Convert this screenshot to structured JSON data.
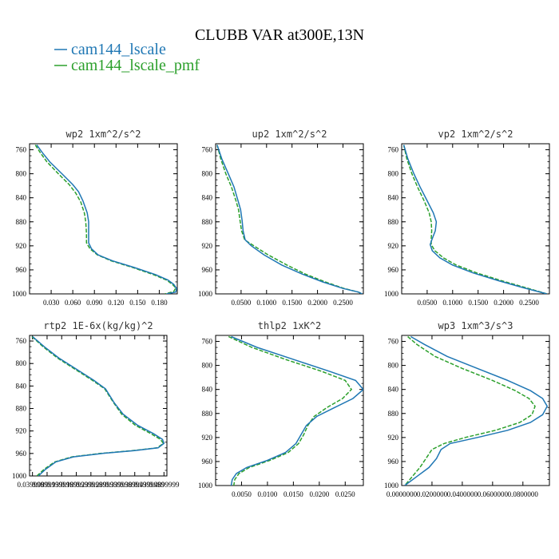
{
  "figure": {
    "title": "CLUBB VAR at300E,13N"
  },
  "legend": [
    {
      "name": "cam144_lscale",
      "color": "#1f77b4",
      "dash": false
    },
    {
      "name": "cam144_lscale_pmf",
      "color": "#2ca02c",
      "dash": true
    }
  ],
  "chart_data": [
    {
      "type": "line",
      "title": "wp2  1xm^2/s^2",
      "ylim": [
        1000,
        750
      ],
      "yticks": [
        760,
        800,
        840,
        880,
        920,
        960,
        1000
      ],
      "xlim": [
        0,
        0.205
      ],
      "xticks": [
        0.03,
        0.06,
        0.09,
        0.12,
        0.15,
        0.18
      ],
      "xticklabels": [
        "0.030",
        "0.060",
        "0.090",
        "0.120",
        "0.150",
        "0.180"
      ],
      "series": [
        {
          "name": "cam144_lscale",
          "points": [
            [
              0.01,
              752
            ],
            [
              0.018,
              765
            ],
            [
              0.028,
              780
            ],
            [
              0.045,
              800
            ],
            [
              0.06,
              818
            ],
            [
              0.068,
              830
            ],
            [
              0.074,
              845
            ],
            [
              0.08,
              865
            ],
            [
              0.082,
              880
            ],
            [
              0.082,
              900
            ],
            [
              0.082,
              915
            ],
            [
              0.086,
              925
            ],
            [
              0.095,
              935
            ],
            [
              0.115,
              945
            ],
            [
              0.145,
              956
            ],
            [
              0.175,
              968
            ],
            [
              0.192,
              977
            ],
            [
              0.2,
              984
            ],
            [
              0.204,
              991
            ],
            [
              0.203,
              997
            ],
            [
              0.19,
              1000
            ]
          ]
        },
        {
          "name": "cam144_lscale_pmf",
          "points": [
            [
              0.008,
              752
            ],
            [
              0.015,
              765
            ],
            [
              0.024,
              780
            ],
            [
              0.04,
              800
            ],
            [
              0.055,
              818
            ],
            [
              0.064,
              832
            ],
            [
              0.071,
              847
            ],
            [
              0.076,
              865
            ],
            [
              0.078,
              880
            ],
            [
              0.079,
              900
            ],
            [
              0.079,
              915
            ],
            [
              0.084,
              925
            ],
            [
              0.094,
              935
            ],
            [
              0.113,
              945
            ],
            [
              0.143,
              956
            ],
            [
              0.172,
              968
            ],
            [
              0.19,
              977
            ],
            [
              0.198,
              984
            ],
            [
              0.203,
              990
            ],
            [
              0.2,
              996
            ],
            [
              0.188,
              1000
            ]
          ]
        }
      ]
    },
    {
      "type": "line",
      "title": "up2  1xm^2/s^2",
      "ylim": [
        1000,
        750
      ],
      "yticks": [
        760,
        800,
        840,
        880,
        920,
        960,
        1000
      ],
      "xlim": [
        0,
        0.29
      ],
      "xticks": [
        0.05,
        0.1,
        0.15,
        0.2,
        0.25
      ],
      "xticklabels": [
        "0.0500",
        "0.1000",
        "0.1500",
        "0.2000",
        "0.2500"
      ],
      "series": [
        {
          "name": "cam144_lscale",
          "points": [
            [
              0.003,
              752
            ],
            [
              0.012,
              775
            ],
            [
              0.025,
              800
            ],
            [
              0.036,
              822
            ],
            [
              0.044,
              845
            ],
            [
              0.049,
              860
            ],
            [
              0.052,
              878
            ],
            [
              0.054,
              895
            ],
            [
              0.058,
              910
            ],
            [
              0.07,
              920
            ],
            [
              0.095,
              935
            ],
            [
              0.13,
              952
            ],
            [
              0.17,
              967
            ],
            [
              0.21,
              980
            ],
            [
              0.25,
              991
            ],
            [
              0.28,
              997
            ],
            [
              0.288,
              1000
            ]
          ]
        },
        {
          "name": "cam144_lscale_pmf",
          "points": [
            [
              0.003,
              752
            ],
            [
              0.01,
              775
            ],
            [
              0.02,
              800
            ],
            [
              0.031,
              822
            ],
            [
              0.04,
              845
            ],
            [
              0.045,
              860
            ],
            [
              0.048,
              878
            ],
            [
              0.051,
              895
            ],
            [
              0.057,
              910
            ],
            [
              0.075,
              920
            ],
            [
              0.103,
              935
            ],
            [
              0.14,
              952
            ],
            [
              0.176,
              967
            ],
            [
              0.215,
              980
            ],
            [
              0.252,
              991
            ],
            [
              0.28,
              997
            ],
            [
              0.288,
              1000
            ]
          ]
        }
      ]
    },
    {
      "type": "line",
      "title": "vp2  1xm^2/s^2",
      "ylim": [
        1000,
        750
      ],
      "yticks": [
        760,
        800,
        840,
        880,
        920,
        960,
        1000
      ],
      "xlim": [
        0,
        0.29
      ],
      "xticks": [
        0.05,
        0.1,
        0.15,
        0.2,
        0.25
      ],
      "xticklabels": [
        "0.0500",
        "0.1000",
        "0.1500",
        "0.2000",
        "0.2500"
      ],
      "series": [
        {
          "name": "cam144_lscale",
          "points": [
            [
              0.004,
              752
            ],
            [
              0.012,
              775
            ],
            [
              0.024,
              800
            ],
            [
              0.036,
              822
            ],
            [
              0.05,
              845
            ],
            [
              0.062,
              865
            ],
            [
              0.068,
              880
            ],
            [
              0.066,
              895
            ],
            [
              0.06,
              908
            ],
            [
              0.056,
              918
            ],
            [
              0.06,
              928
            ],
            [
              0.075,
              940
            ],
            [
              0.1,
              952
            ],
            [
              0.14,
              965
            ],
            [
              0.19,
              978
            ],
            [
              0.24,
              990
            ],
            [
              0.285,
              1000
            ]
          ]
        },
        {
          "name": "cam144_lscale_pmf",
          "points": [
            [
              0.004,
              752
            ],
            [
              0.01,
              775
            ],
            [
              0.02,
              800
            ],
            [
              0.031,
              822
            ],
            [
              0.044,
              845
            ],
            [
              0.054,
              865
            ],
            [
              0.058,
              880
            ],
            [
              0.059,
              895
            ],
            [
              0.058,
              908
            ],
            [
              0.058,
              918
            ],
            [
              0.065,
              928
            ],
            [
              0.082,
              940
            ],
            [
              0.107,
              952
            ],
            [
              0.147,
              965
            ],
            [
              0.196,
              978
            ],
            [
              0.245,
              990
            ],
            [
              0.285,
              1000
            ]
          ]
        }
      ]
    },
    {
      "type": "line",
      "title": "rtp2  1E-6x(kg/kg)^2",
      "ylim": [
        1000,
        750
      ],
      "yticks": [
        760,
        800,
        840,
        880,
        920,
        960,
        1000
      ],
      "xlim": [
        0.03,
        0.5
      ],
      "xticks": [
        0.04,
        0.09,
        0.14,
        0.19,
        0.24,
        0.29,
        0.34,
        0.39,
        0.44,
        0.49
      ],
      "xticklabels": [
        "0.0399999",
        "0.0899999",
        "0.1399999",
        "0.1899999",
        "0.2399999",
        "0.2899999",
        "0.3399999",
        "0.3899999",
        "0.4399999",
        "0.4899999"
      ],
      "series": [
        {
          "name": "cam144_lscale",
          "points": [
            [
              0.04,
              752
            ],
            [
              0.08,
              770
            ],
            [
              0.13,
              790
            ],
            [
              0.19,
              810
            ],
            [
              0.25,
              830
            ],
            [
              0.29,
              845
            ],
            [
              0.32,
              870
            ],
            [
              0.35,
              890
            ],
            [
              0.4,
              910
            ],
            [
              0.455,
              925
            ],
            [
              0.485,
              935
            ],
            [
              0.49,
              942
            ],
            [
              0.47,
              950
            ],
            [
              0.39,
              955
            ],
            [
              0.28,
              960
            ],
            [
              0.18,
              966
            ],
            [
              0.12,
              975
            ],
            [
              0.085,
              988
            ],
            [
              0.06,
              1000
            ]
          ]
        },
        {
          "name": "cam144_lscale_pmf",
          "points": [
            [
              0.038,
              752
            ],
            [
              0.076,
              770
            ],
            [
              0.125,
              790
            ],
            [
              0.185,
              810
            ],
            [
              0.245,
              830
            ],
            [
              0.287,
              845
            ],
            [
              0.318,
              870
            ],
            [
              0.345,
              890
            ],
            [
              0.392,
              910
            ],
            [
              0.446,
              925
            ],
            [
              0.478,
              935
            ],
            [
              0.488,
              942
            ],
            [
              0.466,
              950
            ],
            [
              0.382,
              955
            ],
            [
              0.272,
              960
            ],
            [
              0.175,
              966
            ],
            [
              0.116,
              975
            ],
            [
              0.08,
              988
            ],
            [
              0.055,
              1000
            ]
          ]
        }
      ]
    },
    {
      "type": "line",
      "title": "thlp2  1xK^2",
      "ylim": [
        1000,
        750
      ],
      "yticks": [
        760,
        800,
        840,
        880,
        920,
        960,
        1000
      ],
      "xlim": [
        0,
        0.0285
      ],
      "xticks": [
        0.005,
        0.01,
        0.015,
        0.02,
        0.025
      ],
      "xticklabels": [
        "0.0050",
        "0.0100",
        "0.0150",
        "0.0200",
        "0.0250"
      ],
      "series": [
        {
          "name": "cam144_lscale",
          "points": [
            [
              0.003,
              752
            ],
            [
              0.008,
              770
            ],
            [
              0.015,
              790
            ],
            [
              0.022,
              810
            ],
            [
              0.027,
              825
            ],
            [
              0.0285,
              840
            ],
            [
              0.0265,
              855
            ],
            [
              0.023,
              870
            ],
            [
              0.0195,
              885
            ],
            [
              0.0175,
              900
            ],
            [
              0.0165,
              915
            ],
            [
              0.0155,
              930
            ],
            [
              0.0135,
              945
            ],
            [
              0.01,
              958
            ],
            [
              0.006,
              970
            ],
            [
              0.004,
              980
            ],
            [
              0.0032,
              990
            ],
            [
              0.003,
              1000
            ]
          ]
        },
        {
          "name": "cam144_lscale_pmf",
          "points": [
            [
              0.0025,
              752
            ],
            [
              0.007,
              770
            ],
            [
              0.0135,
              790
            ],
            [
              0.0205,
              810
            ],
            [
              0.025,
              825
            ],
            [
              0.0262,
              840
            ],
            [
              0.0245,
              855
            ],
            [
              0.0215,
              870
            ],
            [
              0.019,
              885
            ],
            [
              0.0178,
              900
            ],
            [
              0.017,
              915
            ],
            [
              0.016,
              930
            ],
            [
              0.014,
              945
            ],
            [
              0.0105,
              958
            ],
            [
              0.0065,
              970
            ],
            [
              0.0045,
              980
            ],
            [
              0.0037,
              990
            ],
            [
              0.0035,
              1000
            ]
          ]
        }
      ]
    },
    {
      "type": "line",
      "title": "wp3  1xm^3/s^3",
      "ylim": [
        1000,
        750
      ],
      "yticks": [
        760,
        800,
        840,
        880,
        920,
        960,
        1000
      ],
      "xlim": [
        0,
        0.0975
      ],
      "xticks": [
        0,
        0.02,
        0.04,
        0.06,
        0.08
      ],
      "xticklabels": [
        "0.0000000",
        "0.0200000",
        "0.0400000",
        "0.0600000",
        "0.0800000"
      ],
      "series": [
        {
          "name": "cam144_lscale",
          "points": [
            [
              0.006,
              752
            ],
            [
              0.015,
              765
            ],
            [
              0.03,
              785
            ],
            [
              0.05,
              805
            ],
            [
              0.07,
              825
            ],
            [
              0.085,
              842
            ],
            [
              0.093,
              855
            ],
            [
              0.096,
              868
            ],
            [
              0.093,
              882
            ],
            [
              0.085,
              895
            ],
            [
              0.07,
              908
            ],
            [
              0.05,
              920
            ],
            [
              0.032,
              930
            ],
            [
              0.026,
              940
            ],
            [
              0.023,
              955
            ],
            [
              0.018,
              970
            ],
            [
              0.01,
              985
            ],
            [
              0.002,
              1000
            ]
          ]
        },
        {
          "name": "cam144_lscale_pmf",
          "points": [
            [
              0.004,
              752
            ],
            [
              0.01,
              765
            ],
            [
              0.022,
              785
            ],
            [
              0.04,
              805
            ],
            [
              0.06,
              825
            ],
            [
              0.075,
              842
            ],
            [
              0.084,
              855
            ],
            [
              0.088,
              868
            ],
            [
              0.086,
              882
            ],
            [
              0.078,
              895
            ],
            [
              0.062,
              908
            ],
            [
              0.042,
              920
            ],
            [
              0.028,
              930
            ],
            [
              0.02,
              940
            ],
            [
              0.016,
              955
            ],
            [
              0.012,
              970
            ],
            [
              0.007,
              985
            ],
            [
              0.002,
              1000
            ]
          ]
        }
      ]
    }
  ]
}
